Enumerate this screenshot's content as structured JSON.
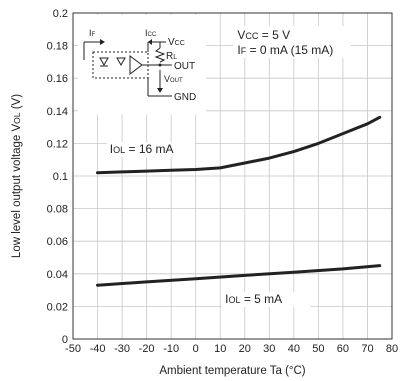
{
  "chart_data": {
    "type": "line",
    "xlabel": "Ambient temperature Ta (°C)",
    "ylabel": "Low level output voltage VOL (V)",
    "xlim": [
      -50,
      80
    ],
    "ylim": [
      0,
      0.2
    ],
    "x_ticks": [
      "-50",
      "-40",
      "-30",
      "-20",
      "-10",
      "0",
      "10",
      "20",
      "30",
      "40",
      "50",
      "60",
      "70",
      "80"
    ],
    "y_ticks": [
      "0",
      "0.02",
      "0.04",
      "0.06",
      "0.08",
      "0.1",
      "0.12",
      "0.14",
      "0.16",
      "0.18",
      "0.2"
    ],
    "grid": true,
    "conditions": [
      "VCC = 5 V",
      "IF = 0 mA (15 mA)"
    ],
    "series": [
      {
        "name": "IOL = 16 mA",
        "x": [
          -40,
          -30,
          -20,
          -10,
          0,
          10,
          20,
          30,
          40,
          50,
          60,
          70,
          75
        ],
        "values": [
          0.102,
          0.1025,
          0.103,
          0.1035,
          0.104,
          0.105,
          0.108,
          0.111,
          0.115,
          0.12,
          0.126,
          0.132,
          0.136
        ]
      },
      {
        "name": "IOL = 5 mA",
        "x": [
          -40,
          -20,
          0,
          20,
          40,
          60,
          75
        ],
        "values": [
          0.033,
          0.035,
          0.037,
          0.039,
          0.041,
          0.043,
          0.045
        ]
      }
    ],
    "circuit_labels": [
      "IF",
      "ICC",
      "VCC",
      "RL",
      "OUT",
      "VOUT",
      "GND"
    ]
  }
}
